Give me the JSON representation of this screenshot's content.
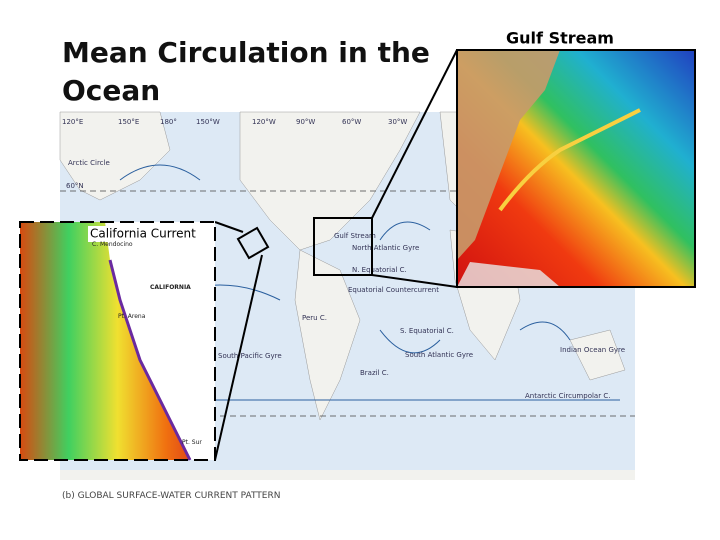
{
  "title": "Mean Circulation in the Ocean",
  "gulf_inset": {
    "label": "Gulf Stream"
  },
  "california_inset": {
    "label": "California Current",
    "places": [
      "C. Mendocino",
      "CALIFORNIA",
      "Pt. Arena",
      "Pt. Sur"
    ]
  },
  "map": {
    "caption": "(b) GLOBAL SURFACE-WATER CURRENT PATTERN",
    "labels": [
      "120°E",
      "150°E",
      "180°",
      "150°W",
      "120°W",
      "90°W",
      "60°W",
      "30°W",
      "Arctic Circle",
      "60°N",
      "North Atlantic Gyre",
      "N. Equatorial C.",
      "Equatorial Countercurrent",
      "S. Equatorial C.",
      "South Atlantic Gyre",
      "South Pacific Gyre",
      "Indian Ocean Gyre",
      "Antarctic Circumpolar C.",
      "Gulf Stream",
      "Brazil C.",
      "Peru C."
    ]
  }
}
